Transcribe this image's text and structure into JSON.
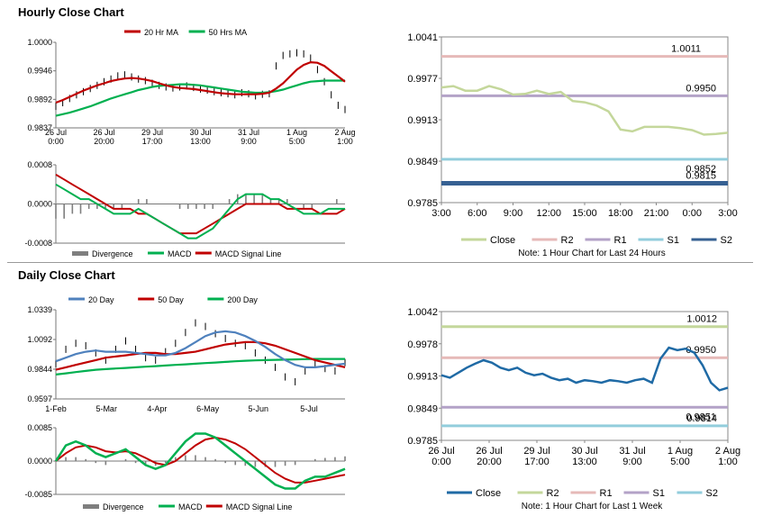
{
  "sections": {
    "hourly_title": "Hourly Close Chart",
    "daily_title": "Daily Close Chart"
  },
  "colors": {
    "ma_fast": "#c00000",
    "ma_slow": "#00b050",
    "ma20_daily": "#4f81bd",
    "close_right": "#c4d79b",
    "r2": "#e6b9b8",
    "r1": "#b3a2c7",
    "s1": "#92cddc",
    "s2": "#366092",
    "close_daily_right": "#1f6aa5",
    "r2_daily": "#c4d79b",
    "divergence": "#7f7f7f"
  },
  "chart_data": [
    {
      "id": "hourly-price",
      "type": "line",
      "title": "Hourly Close Chart",
      "legend": [
        "20 Hr MA",
        "50 Hrs MA"
      ],
      "yticks": [
        "1.0000",
        "0.9946",
        "0.9892",
        "0.9837"
      ],
      "ylim": [
        0.9837,
        1.0
      ],
      "xticks": [
        "26 Jul\n0:00",
        "26 Jul\n20:00",
        "29 Jul\n17:00",
        "30 Jul\n13:00",
        "31 Jul\n9:00",
        "1 Aug\n5:00",
        "2 Aug\n1:00"
      ],
      "close": [
        0.9878,
        0.9885,
        0.9893,
        0.99,
        0.9906,
        0.9912,
        0.9918,
        0.9925,
        0.993,
        0.9936,
        0.9938,
        0.9934,
        0.993,
        0.9927,
        0.9922,
        0.9918,
        0.9915,
        0.9913,
        0.9915,
        0.9917,
        0.9914,
        0.9911,
        0.9909,
        0.9906,
        0.9904,
        0.9902,
        0.99,
        0.9904,
        0.9902,
        0.9898,
        0.9901,
        0.9902,
        0.9955,
        0.9975,
        0.9978,
        0.998,
        0.9978,
        0.997,
        0.9948,
        0.9925,
        0.99,
        0.988,
        0.9872
      ],
      "ma20": [
        0.9885,
        0.989,
        0.9896,
        0.9902,
        0.9908,
        0.9913,
        0.9918,
        0.9922,
        0.9926,
        0.9929,
        0.9931,
        0.9932,
        0.9931,
        0.9929,
        0.9926,
        0.9922,
        0.9918,
        0.9915,
        0.9913,
        0.9912,
        0.9911,
        0.9909,
        0.9907,
        0.9905,
        0.9903,
        0.9902,
        0.9901,
        0.9901,
        0.9901,
        0.9901,
        0.9902,
        0.9904,
        0.9912,
        0.9922,
        0.9935,
        0.9948,
        0.9957,
        0.9962,
        0.9961,
        0.9955,
        0.9945,
        0.9935,
        0.9925
      ],
      "ma50": [
        0.986,
        0.9863,
        0.9866,
        0.987,
        0.9874,
        0.9878,
        0.9883,
        0.9888,
        0.9893,
        0.9897,
        0.9901,
        0.9905,
        0.9909,
        0.9912,
        0.9915,
        0.9917,
        0.9918,
        0.9919,
        0.992,
        0.992,
        0.9919,
        0.9918,
        0.9916,
        0.9914,
        0.9912,
        0.991,
        0.9908,
        0.9906,
        0.9905,
        0.9904,
        0.9904,
        0.9905,
        0.9907,
        0.991,
        0.9914,
        0.9918,
        0.9922,
        0.9925,
        0.9926,
        0.9927,
        0.9927,
        0.9927,
        0.9927
      ]
    },
    {
      "id": "hourly-macd",
      "type": "line",
      "legend": [
        "Divergence",
        "MACD",
        "MACD Signal Line"
      ],
      "yticks": [
        "0.0008",
        "0.0000",
        "-0.0008"
      ],
      "ylim": [
        -0.0008,
        0.0008
      ],
      "macd": [
        0.0004,
        0.0003,
        0.0002,
        0.0001,
        0.0001,
        0.0,
        -0.0001,
        -0.0002,
        -0.0002,
        -0.0002,
        -0.0001,
        -0.0002,
        -0.0003,
        -0.0004,
        -0.0005,
        -0.0006,
        -0.0007,
        -0.0007,
        -0.0006,
        -0.0005,
        -0.0003,
        -0.0001,
        0.0001,
        0.0002,
        0.0002,
        0.0002,
        0.0001,
        0.0001,
        0.0,
        -0.0001,
        -0.0002,
        -0.0002,
        -0.0002,
        -0.0001,
        -0.0001,
        -0.0001
      ],
      "signal": [
        0.0006,
        0.0005,
        0.0004,
        0.0003,
        0.0002,
        0.0001,
        0.0,
        -0.0001,
        -0.0001,
        -0.0001,
        -0.0002,
        -0.0002,
        -0.0003,
        -0.0004,
        -0.0005,
        -0.0006,
        -0.0006,
        -0.0006,
        -0.0005,
        -0.0004,
        -0.0003,
        -0.0002,
        -0.0001,
        0.0,
        0.0,
        0.0,
        0.0,
        0.0,
        -0.0001,
        -0.0001,
        -0.0001,
        -0.0001,
        -0.0002,
        -0.0002,
        -0.0002,
        -0.0001
      ],
      "divergence": [
        -0.0003,
        -0.0003,
        -0.0002,
        -0.0002,
        -0.0001,
        -0.0001,
        -0.0001,
        -0.0001,
        -0.0001,
        0.0,
        0.0001,
        0.0001,
        0.0,
        0.0,
        0.0,
        -0.0001,
        -0.0001,
        -0.0001,
        -0.0001,
        -0.0001,
        0.0,
        0.0001,
        0.0002,
        0.0002,
        0.0002,
        0.0002,
        0.0001,
        0.0001,
        0.0001,
        0.0,
        -0.0001,
        -0.0001,
        0.0,
        0.0,
        0.0001,
        0.0
      ]
    },
    {
      "id": "hourly-right",
      "type": "line",
      "yticks": [
        "1.0041",
        "0.9977",
        "0.9913",
        "0.9849",
        "0.9785"
      ],
      "ylim": [
        0.9785,
        1.0041
      ],
      "xticks": [
        "3:00",
        "6:00",
        "9:00",
        "12:00",
        "15:00",
        "18:00",
        "21:00",
        "0:00",
        "3:00"
      ],
      "close": [
        0.9963,
        0.9965,
        0.9958,
        0.9958,
        0.9965,
        0.996,
        0.9952,
        0.9953,
        0.9958,
        0.9953,
        0.9956,
        0.9942,
        0.994,
        0.9935,
        0.9926,
        0.9898,
        0.9895,
        0.9902,
        0.9902,
        0.9902,
        0.99,
        0.9897,
        0.989,
        0.9891,
        0.9893
      ],
      "levels": [
        {
          "name": "R2",
          "value": 1.0011,
          "label": "1.0011"
        },
        {
          "name": "R1",
          "value": 0.995,
          "label": "0.9950"
        },
        {
          "name": "S1",
          "value": 0.9852,
          "label": "0.9852"
        },
        {
          "name": "S2",
          "value": 0.9815,
          "label": "0.9815"
        }
      ],
      "legend": [
        "Close",
        "R2",
        "R1",
        "S1",
        "S2"
      ],
      "note": "Note: 1 Hour Chart for Last 24 Hours"
    },
    {
      "id": "daily-price",
      "type": "line",
      "title": "Daily Close Chart",
      "legend": [
        "20 Day",
        "50 Day",
        "200 Day"
      ],
      "yticks": [
        "1.0339",
        "1.0092",
        "0.9844",
        "0.9597"
      ],
      "ylim": [
        0.9597,
        1.0339
      ],
      "xticks": [
        "1-Feb",
        "5-Mar",
        "4-Apr",
        "6-May",
        "5-Jun",
        "5-Jul"
      ],
      "close": [
        0.989,
        1.001,
        1.006,
        1.004,
        0.998,
        0.992,
        1.001,
        1.008,
        1.001,
        0.994,
        0.992,
        0.999,
        1.006,
        1.015,
        1.023,
        1.02,
        1.014,
        1.01,
        1.006,
        1.004,
        0.998,
        0.992,
        0.986,
        0.978,
        0.974,
        0.983,
        0.989,
        0.985,
        0.983,
        0.99
      ],
      "ma20": [
        0.991,
        0.994,
        0.997,
        0.999,
        1.0,
        0.999,
        0.999,
        0.999,
        0.998,
        0.997,
        0.996,
        0.996,
        0.998,
        1.002,
        1.007,
        1.012,
        1.015,
        1.016,
        1.015,
        1.012,
        1.008,
        1.003,
        0.997,
        0.992,
        0.988,
        0.986,
        0.986,
        0.987,
        0.988,
        0.989
      ],
      "ma50": [
        0.984,
        0.986,
        0.988,
        0.99,
        0.992,
        0.994,
        0.995,
        0.996,
        0.997,
        0.998,
        0.998,
        0.997,
        0.997,
        0.998,
        0.999,
        1.001,
        1.003,
        1.005,
        1.006,
        1.007,
        1.007,
        1.006,
        1.004,
        1.001,
        0.998,
        0.995,
        0.992,
        0.99,
        0.988,
        0.986
      ],
      "ma200": [
        0.98,
        0.981,
        0.982,
        0.983,
        0.984,
        0.9845,
        0.985,
        0.9855,
        0.986,
        0.9865,
        0.987,
        0.9875,
        0.988,
        0.9885,
        0.989,
        0.9895,
        0.99,
        0.9905,
        0.991,
        0.9915,
        0.9918,
        0.992,
        0.9922,
        0.9924,
        0.9926,
        0.9928,
        0.993,
        0.993,
        0.993,
        0.993
      ]
    },
    {
      "id": "daily-macd",
      "type": "line",
      "legend": [
        "Divergence",
        "MACD",
        "MACD Signal Line"
      ],
      "yticks": [
        "0.0085",
        "0.0000",
        "-0.0085"
      ],
      "ylim": [
        -0.0085,
        0.0085
      ],
      "macd": [
        0.0,
        0.004,
        0.005,
        0.004,
        0.002,
        0.001,
        0.002,
        0.003,
        0.001,
        -0.001,
        -0.002,
        -0.001,
        0.002,
        0.005,
        0.007,
        0.007,
        0.006,
        0.004,
        0.002,
        0.0,
        -0.002,
        -0.004,
        -0.006,
        -0.007,
        -0.007,
        -0.005,
        -0.004,
        -0.004,
        -0.003,
        -0.002
      ],
      "signal": [
        0.0,
        0.002,
        0.0035,
        0.004,
        0.0035,
        0.0025,
        0.0022,
        0.0025,
        0.002,
        0.0008,
        -0.0005,
        -0.001,
        0.0,
        0.002,
        0.004,
        0.0055,
        0.006,
        0.0055,
        0.0045,
        0.003,
        0.001,
        -0.001,
        -0.003,
        -0.0045,
        -0.0055,
        -0.0055,
        -0.005,
        -0.0045,
        -0.004,
        -0.0035
      ],
      "divergence": [
        0.0,
        0.001,
        0.001,
        0.0005,
        -0.0005,
        -0.001,
        0.0,
        0.0005,
        -0.0005,
        -0.001,
        -0.0012,
        -0.0005,
        0.001,
        0.0015,
        0.0015,
        0.001,
        0.0005,
        -0.0005,
        -0.001,
        -0.0012,
        -0.0015,
        -0.0015,
        -0.0015,
        -0.0012,
        -0.001,
        0.0,
        0.0005,
        0.0008,
        0.001,
        0.0012
      ]
    },
    {
      "id": "daily-right",
      "type": "line",
      "yticks": [
        "1.0042",
        "0.9978",
        "0.9913",
        "0.9849",
        "0.9785"
      ],
      "ylim": [
        0.9785,
        1.0042
      ],
      "xticks": [
        "26 Jul\n0:00",
        "26 Jul\n20:00",
        "29 Jul\n17:00",
        "30 Jul\n13:00",
        "31 Jul\n9:00",
        "1 Aug\n5:00",
        "2 Aug\n1:00"
      ],
      "close": [
        0.9915,
        0.991,
        0.992,
        0.993,
        0.9938,
        0.9945,
        0.994,
        0.993,
        0.9925,
        0.993,
        0.992,
        0.9915,
        0.9918,
        0.991,
        0.9905,
        0.9908,
        0.99,
        0.9905,
        0.9903,
        0.99,
        0.9905,
        0.9903,
        0.99,
        0.9905,
        0.9908,
        0.99,
        0.9948,
        0.997,
        0.9965,
        0.9968,
        0.996,
        0.9935,
        0.99,
        0.9885,
        0.989
      ],
      "levels": [
        {
          "name": "R2",
          "value": 1.0012,
          "label": "1.0012"
        },
        {
          "name": "R1",
          "value": 0.995,
          "label": "0.9950"
        },
        {
          "name": "S1",
          "value": 0.9851,
          "label": "0.9851"
        },
        {
          "name": "S2",
          "value": 0.9814,
          "label": "0.9814"
        }
      ],
      "legend": [
        "Close",
        "R2",
        "R1",
        "S1",
        "S2"
      ],
      "note": "Note: 1 Hour Chart for Last 1 Week"
    }
  ]
}
